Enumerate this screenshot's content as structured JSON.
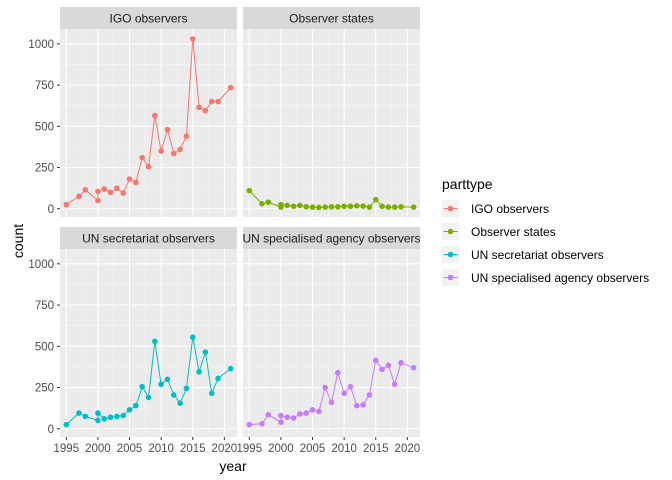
{
  "chart_data": {
    "type": "line",
    "xlabel": "year",
    "ylabel": "count",
    "xlim": [
      1994,
      2022
    ],
    "ylim": [
      -50,
      1090
    ],
    "x_ticks": [
      1995,
      2000,
      2005,
      2010,
      2015,
      2020
    ],
    "y_ticks": [
      0,
      250,
      500,
      750,
      1000
    ],
    "grid": true,
    "legend": {
      "title": "parttype",
      "position": "right",
      "entries": [
        "IGO observers",
        "Observer states",
        "UN secretariat observers",
        "UN specialised agency observers"
      ]
    },
    "colors": [
      "#F8766D",
      "#7CAE00",
      "#00BFC4",
      "#C77CFF"
    ],
    "panels": [
      {
        "name": "IGO observers",
        "x": [
          1995,
          1997,
          1998,
          2000,
          2000,
          2001,
          2002,
          2003,
          2004,
          2005,
          2006,
          2007,
          2008,
          2009,
          2010,
          2011,
          2012,
          2013,
          2014,
          2015,
          2016,
          2017,
          2018,
          2019,
          2021
        ],
        "y": [
          25,
          75,
          115,
          50,
          105,
          120,
          100,
          125,
          95,
          180,
          160,
          310,
          255,
          565,
          350,
          480,
          335,
          360,
          440,
          1030,
          615,
          595,
          650,
          650,
          735
        ]
      },
      {
        "name": "Observer states",
        "x": [
          1995,
          1997,
          1998,
          2000,
          2000,
          2001,
          2002,
          2003,
          2004,
          2005,
          2006,
          2007,
          2008,
          2009,
          2010,
          2011,
          2012,
          2013,
          2014,
          2015,
          2016,
          2017,
          2018,
          2019,
          2021
        ],
        "y": [
          110,
          30,
          40,
          10,
          25,
          20,
          15,
          20,
          12,
          10,
          8,
          10,
          12,
          12,
          15,
          15,
          18,
          16,
          10,
          55,
          15,
          10,
          10,
          12,
          10
        ]
      },
      {
        "name": "UN secretariat observers",
        "x": [
          1995,
          1997,
          1998,
          2000,
          2000,
          2001,
          2002,
          2003,
          2004,
          2005,
          2006,
          2007,
          2008,
          2009,
          2010,
          2011,
          2012,
          2013,
          2014,
          2015,
          2016,
          2017,
          2018,
          2019,
          2021
        ],
        "y": [
          25,
          95,
          75,
          50,
          95,
          60,
          70,
          75,
          80,
          115,
          140,
          255,
          190,
          530,
          270,
          300,
          205,
          155,
          245,
          555,
          345,
          465,
          215,
          305,
          365
        ]
      },
      {
        "name": "UN specialised agency observers",
        "x": [
          1995,
          1997,
          1998,
          2000,
          2000,
          2001,
          2002,
          2003,
          2004,
          2005,
          2006,
          2007,
          2008,
          2009,
          2010,
          2011,
          2012,
          2013,
          2014,
          2015,
          2016,
          2017,
          2018,
          2019,
          2021
        ],
        "y": [
          25,
          30,
          85,
          40,
          80,
          70,
          65,
          90,
          95,
          115,
          105,
          250,
          160,
          340,
          215,
          255,
          140,
          145,
          205,
          415,
          360,
          385,
          270,
          400,
          370
        ]
      }
    ]
  }
}
